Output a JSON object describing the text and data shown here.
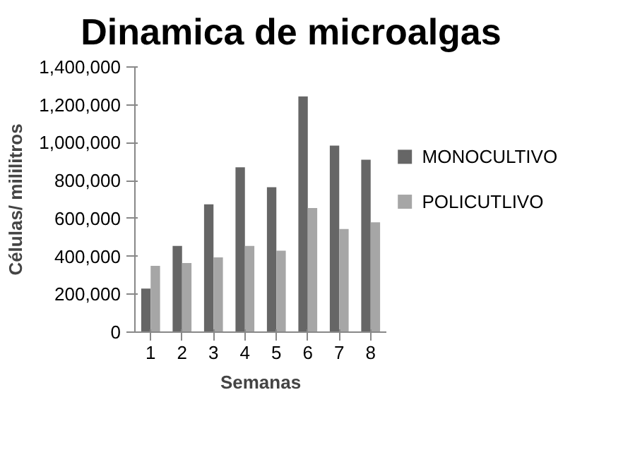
{
  "chart_data": {
    "type": "bar",
    "title": "Dinamica de microalgas",
    "xlabel": "Semanas",
    "ylabel": "Células/ mililitros",
    "categories": [
      "1",
      "2",
      "3",
      "4",
      "5",
      "6",
      "7",
      "8"
    ],
    "series": [
      {
        "name": "MONOCULTIVO",
        "color": "#666666",
        "values": [
          230000,
          455000,
          675000,
          870000,
          765000,
          1245000,
          985000,
          910000
        ]
      },
      {
        "name": "POLICUTLIVO",
        "color": "#a6a6a6",
        "values": [
          350000,
          365000,
          395000,
          455000,
          430000,
          655000,
          545000,
          580000
        ]
      }
    ],
    "ylim": [
      0,
      1400000
    ],
    "yticks": [
      {
        "value": 0,
        "label": "0"
      },
      {
        "value": 200000,
        "label": "200,000"
      },
      {
        "value": 400000,
        "label": "400,000"
      },
      {
        "value": 600000,
        "label": "600,000"
      },
      {
        "value": 800000,
        "label": "800,000"
      },
      {
        "value": 1000000,
        "label": "1,000,000"
      },
      {
        "value": 1200000,
        "label": "1,200,000"
      },
      {
        "value": 1400000,
        "label": "1,400,000"
      }
    ],
    "grid": false,
    "legend": "right"
  }
}
